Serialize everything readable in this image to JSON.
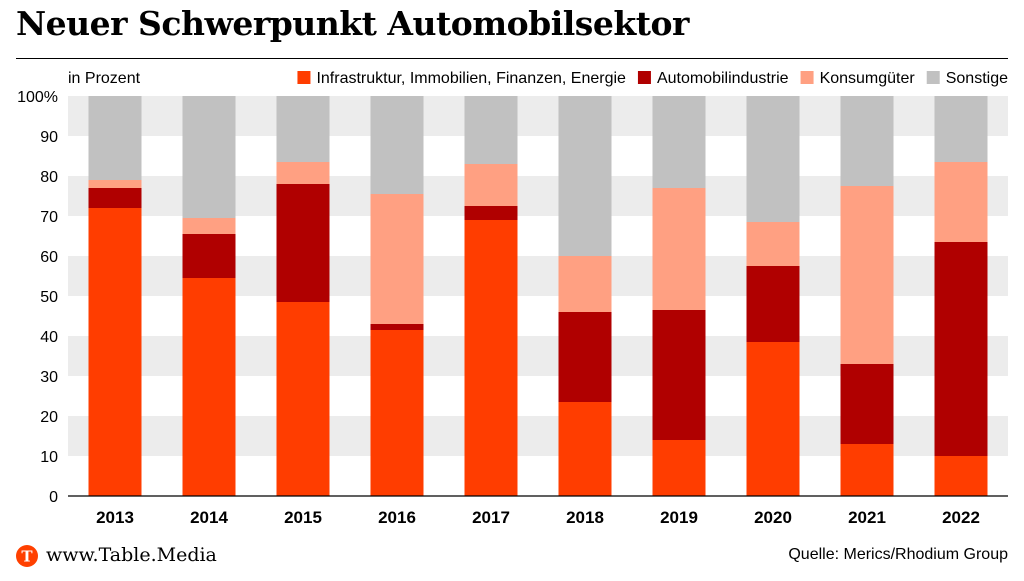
{
  "title": "Neuer Schwerpunkt Automobilsektor",
  "footer": {
    "site": "www.Table.Media",
    "logo_letter": "T",
    "source": "Quelle: Merics/Rhodium Group"
  },
  "colors": {
    "infra": "#ff3d00",
    "auto": "#b00000",
    "konsum": "#ffa082",
    "sonstige": "#c1c1c1",
    "band": "#ececec",
    "logo": "#ff4000"
  },
  "chart_data": {
    "type": "bar",
    "stacked": true,
    "unit_label": "in Prozent",
    "ylim": [
      0,
      100
    ],
    "yticks": [
      "0",
      "10",
      "20",
      "30",
      "40",
      "50",
      "60",
      "70",
      "80",
      "90",
      "100%"
    ],
    "categories": [
      "2013",
      "2014",
      "2015",
      "2016",
      "2017",
      "2018",
      "2019",
      "2020",
      "2021",
      "2022"
    ],
    "legend_position": "top",
    "series": [
      {
        "name": "Infrastruktur, Immobilien, Finanzen, Energie",
        "color_key": "infra",
        "values": [
          72,
          54.5,
          48.5,
          41.5,
          69,
          23.5,
          14,
          38.5,
          13,
          10
        ]
      },
      {
        "name": "Automobilindustrie",
        "color_key": "auto",
        "values": [
          5,
          11,
          29.5,
          1.5,
          3.5,
          22.5,
          32.5,
          19,
          20,
          53.5
        ]
      },
      {
        "name": "Konsumgüter",
        "color_key": "konsum",
        "values": [
          2,
          4,
          5.5,
          32.5,
          10.5,
          14,
          30.5,
          11,
          44.5,
          20
        ]
      },
      {
        "name": "Sonstige",
        "color_key": "sonstige",
        "values": [
          21,
          30.5,
          16.5,
          24.5,
          17,
          40,
          23,
          31.5,
          22.5,
          16.5
        ]
      }
    ]
  }
}
